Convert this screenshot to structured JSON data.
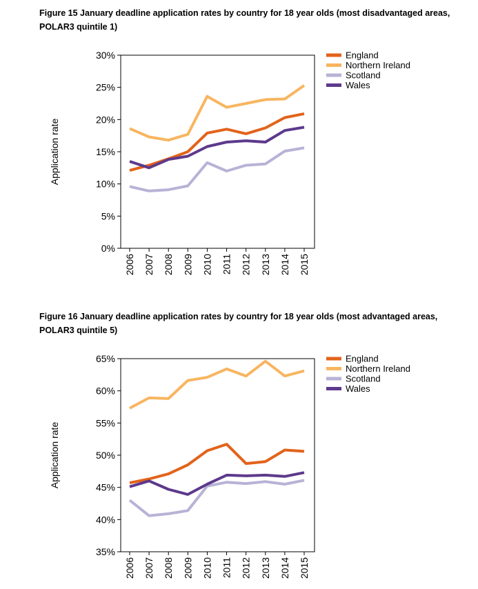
{
  "chart_data": [
    {
      "type": "line",
      "title": "Figure 15 January deadline application rates by country for 18 year olds (most disadvantaged areas, POLAR3 quintile 1)",
      "xlabel": "",
      "ylabel": "Application rate",
      "x": [
        "2006",
        "2007",
        "2008",
        "2009",
        "2010",
        "2011",
        "2012",
        "2013",
        "2014",
        "2015"
      ],
      "ylim": [
        0,
        30
      ],
      "yticks": [
        0,
        5,
        10,
        15,
        20,
        25,
        30
      ],
      "ytick_labels": [
        "0%",
        "5%",
        "10%",
        "15%",
        "20%",
        "25%",
        "30%"
      ],
      "legend_position": "top-right",
      "grid": false,
      "series": [
        {
          "name": "England",
          "color": "#E2631B",
          "values": [
            12.1,
            12.9,
            13.9,
            15.0,
            17.9,
            18.5,
            17.8,
            18.7,
            20.3,
            20.9
          ]
        },
        {
          "name": "Northern Ireland",
          "color": "#F8B560",
          "values": [
            18.6,
            17.3,
            16.8,
            17.7,
            23.6,
            21.9,
            22.5,
            23.1,
            23.2,
            25.3
          ]
        },
        {
          "name": "Scotland",
          "color": "#B7B3D6",
          "values": [
            9.6,
            8.9,
            9.1,
            9.7,
            13.3,
            12.0,
            12.9,
            13.1,
            15.1,
            15.6
          ]
        },
        {
          "name": "Wales",
          "color": "#5D3A8C",
          "values": [
            13.5,
            12.5,
            13.8,
            14.3,
            15.8,
            16.5,
            16.7,
            16.5,
            18.3,
            18.8
          ]
        }
      ]
    },
    {
      "type": "line",
      "title": "Figure 16 January deadline application rates by country for 18 year olds (most advantaged areas, POLAR3 quintile 5)",
      "xlabel": "",
      "ylabel": "Application rate",
      "x": [
        "2006",
        "2007",
        "2008",
        "2009",
        "2010",
        "2011",
        "2012",
        "2013",
        "2014",
        "2015"
      ],
      "ylim": [
        35,
        65
      ],
      "yticks": [
        35,
        40,
        45,
        50,
        55,
        60,
        65
      ],
      "ytick_labels": [
        "35%",
        "40%",
        "45%",
        "50%",
        "55%",
        "60%",
        "65%"
      ],
      "legend_position": "top-right",
      "grid": false,
      "series": [
        {
          "name": "England",
          "color": "#E2631B",
          "values": [
            45.7,
            46.3,
            47.1,
            48.5,
            50.7,
            51.7,
            48.7,
            49.0,
            50.8,
            50.6
          ]
        },
        {
          "name": "Northern Ireland",
          "color": "#F8B560",
          "values": [
            57.3,
            58.9,
            58.8,
            61.6,
            62.1,
            63.4,
            62.3,
            64.6,
            62.3,
            63.1
          ]
        },
        {
          "name": "Scotland",
          "color": "#B7B3D6",
          "values": [
            43.0,
            40.6,
            40.9,
            41.4,
            45.2,
            45.8,
            45.6,
            45.9,
            45.5,
            46.1
          ]
        },
        {
          "name": "Wales",
          "color": "#5D3A8C",
          "values": [
            45.1,
            46.0,
            44.7,
            43.9,
            45.5,
            46.9,
            46.8,
            46.9,
            46.7,
            47.3
          ]
        }
      ]
    }
  ]
}
